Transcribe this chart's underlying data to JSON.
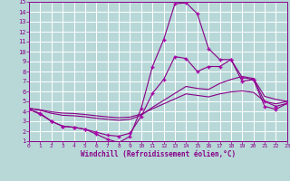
{
  "bg_color": "#b8d8d8",
  "grid_color": "#ffffff",
  "line_color": "#880088",
  "marker_color": "#aa00aa",
  "xlabel": "Windchill (Refroidissement éolien,°C)",
  "xlim": [
    0,
    23
  ],
  "ylim": [
    1,
    15
  ],
  "xticks": [
    0,
    1,
    2,
    3,
    4,
    5,
    6,
    7,
    8,
    9,
    10,
    11,
    12,
    13,
    14,
    15,
    16,
    17,
    18,
    19,
    20,
    21,
    22,
    23
  ],
  "yticks": [
    1,
    2,
    3,
    4,
    5,
    6,
    7,
    8,
    9,
    10,
    11,
    12,
    13,
    14,
    15
  ],
  "line1_x": [
    0,
    1,
    2,
    3,
    4,
    5,
    6,
    7,
    8,
    9,
    10,
    11,
    12,
    13,
    14,
    15,
    16,
    17,
    18,
    19,
    20,
    21,
    22,
    23
  ],
  "line1_y": [
    4.2,
    3.7,
    3.0,
    2.5,
    2.4,
    2.2,
    1.7,
    1.2,
    0.85,
    1.5,
    4.3,
    8.5,
    11.2,
    14.8,
    14.9,
    13.8,
    10.3,
    9.2,
    9.2,
    7.4,
    7.2,
    4.5,
    4.2,
    4.8
  ],
  "line2_x": [
    0,
    1,
    2,
    3,
    4,
    5,
    6,
    7,
    8,
    9,
    10,
    11,
    12,
    13,
    14,
    15,
    16,
    17,
    18,
    19,
    20,
    21,
    22,
    23
  ],
  "line2_y": [
    4.2,
    3.8,
    3.0,
    2.5,
    2.4,
    2.2,
    1.9,
    1.6,
    1.5,
    1.8,
    3.5,
    5.8,
    7.2,
    9.5,
    9.3,
    8.0,
    8.5,
    8.5,
    9.2,
    7.0,
    7.2,
    5.0,
    4.5,
    4.8
  ],
  "line3_x": [
    0,
    1,
    2,
    3,
    4,
    5,
    6,
    7,
    8,
    9,
    10,
    11,
    12,
    13,
    14,
    15,
    16,
    17,
    18,
    19,
    20,
    21,
    22,
    23
  ],
  "line3_y": [
    4.3,
    4.1,
    3.8,
    3.6,
    3.55,
    3.45,
    3.3,
    3.2,
    3.1,
    3.2,
    3.6,
    4.4,
    5.1,
    5.8,
    6.5,
    6.3,
    6.2,
    6.8,
    7.2,
    7.5,
    7.3,
    5.5,
    5.2,
    5.0
  ],
  "line4_x": [
    0,
    1,
    2,
    3,
    4,
    5,
    6,
    7,
    8,
    9,
    10,
    11,
    12,
    13,
    14,
    15,
    16,
    17,
    18,
    19,
    20,
    21,
    22,
    23
  ],
  "line4_y": [
    4.3,
    4.15,
    3.95,
    3.82,
    3.78,
    3.68,
    3.55,
    3.44,
    3.35,
    3.42,
    3.72,
    4.25,
    4.75,
    5.25,
    5.75,
    5.6,
    5.45,
    5.75,
    5.95,
    6.05,
    5.9,
    5.0,
    4.75,
    5.0
  ]
}
